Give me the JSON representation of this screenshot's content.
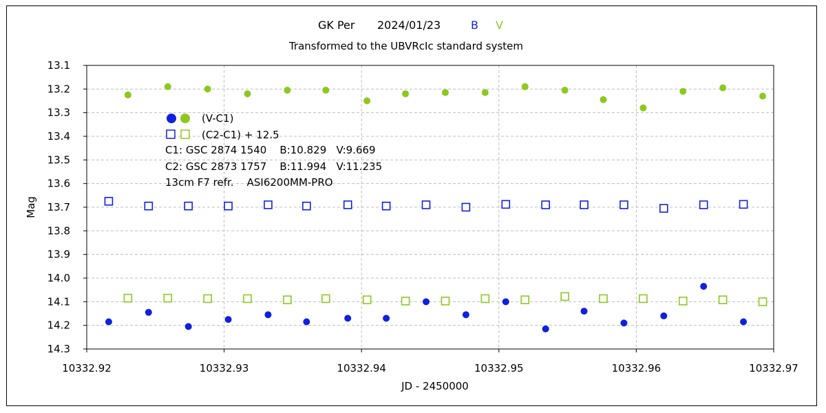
{
  "chart_data": {
    "type": "scatter",
    "title": {
      "object": "GK Per",
      "date": "2024/01/23",
      "band_b": "B",
      "band_v": "V"
    },
    "subtitle": "Transformed to the UBVRcIc standard system",
    "xlabel": "JD - 2450000",
    "ylabel": "Mag",
    "xlim": [
      10332.92,
      10332.97
    ],
    "ylim": [
      13.1,
      14.3
    ],
    "y_inverted": true,
    "x_ticks": [
      "10332.92",
      "10332.93",
      "10332.94",
      "10332.95",
      "10332.96",
      "10332.97"
    ],
    "x_tick_values": [
      10332.92,
      10332.93,
      10332.94,
      10332.95,
      10332.96,
      10332.97
    ],
    "y_ticks": [
      "13.1",
      "13.2",
      "13.3",
      "13.4",
      "13.5",
      "13.6",
      "13.7",
      "13.8",
      "13.9",
      "14.0",
      "14.1",
      "14.2",
      "14.3"
    ],
    "y_tick_values": [
      13.1,
      13.2,
      13.3,
      13.4,
      13.5,
      13.6,
      13.7,
      13.8,
      13.9,
      14.0,
      14.1,
      14.2,
      14.3
    ],
    "grid": true,
    "colors": {
      "B": "#1020e0",
      "V": "#8cc81e"
    },
    "series": [
      {
        "key": "B (V-C1)",
        "marker": "filled-circle",
        "color": "#1020e0",
        "x": [
          10332.9216,
          10332.9245,
          10332.9274,
          10332.9303,
          10332.9332,
          10332.936,
          10332.939,
          10332.9418,
          10332.9447,
          10332.9476,
          10332.9505,
          10332.9534,
          10332.9562,
          10332.9591,
          10332.962,
          10332.9649,
          10332.9678
        ],
        "y": [
          14.185,
          14.145,
          14.205,
          14.175,
          14.155,
          14.185,
          14.17,
          14.17,
          14.1,
          14.155,
          14.1,
          14.215,
          14.14,
          14.19,
          14.16,
          14.035,
          14.185
        ]
      },
      {
        "key": "V (V-C1)",
        "marker": "filled-circle",
        "color": "#8cc81e",
        "x": [
          10332.923,
          10332.9259,
          10332.9288,
          10332.9317,
          10332.9346,
          10332.9374,
          10332.9404,
          10332.9432,
          10332.9461,
          10332.949,
          10332.9519,
          10332.9548,
          10332.9576,
          10332.9605,
          10332.9634,
          10332.9663,
          10332.9692
        ],
        "y": [
          13.225,
          13.19,
          13.2,
          13.22,
          13.205,
          13.205,
          13.25,
          13.22,
          13.215,
          13.215,
          13.19,
          13.205,
          13.245,
          13.28,
          13.21,
          13.195,
          13.23
        ]
      },
      {
        "key": "B (C2-C1)+12.5",
        "marker": "open-square",
        "color": "#1020e0",
        "x": [
          10332.9216,
          10332.9245,
          10332.9274,
          10332.9303,
          10332.9332,
          10332.936,
          10332.939,
          10332.9418,
          10332.9447,
          10332.9476,
          10332.9505,
          10332.9534,
          10332.9562,
          10332.9591,
          10332.962,
          10332.9649,
          10332.9678
        ],
        "y": [
          13.675,
          13.695,
          13.695,
          13.695,
          13.69,
          13.695,
          13.69,
          13.695,
          13.69,
          13.7,
          13.688,
          13.69,
          13.69,
          13.69,
          13.705,
          13.69,
          13.688
        ]
      },
      {
        "key": "V (C2-C1)+12.5",
        "marker": "open-square",
        "color": "#8cc81e",
        "x": [
          10332.923,
          10332.9259,
          10332.9288,
          10332.9317,
          10332.9346,
          10332.9374,
          10332.9404,
          10332.9432,
          10332.9461,
          10332.949,
          10332.9519,
          10332.9548,
          10332.9576,
          10332.9605,
          10332.9634,
          10332.9663,
          10332.9692
        ],
        "y": [
          14.085,
          14.085,
          14.087,
          14.087,
          14.092,
          14.087,
          14.092,
          14.097,
          14.097,
          14.087,
          14.092,
          14.078,
          14.087,
          14.087,
          14.097,
          14.092,
          14.1
        ]
      }
    ],
    "legend": {
      "placement": "upper-left inside plot",
      "entries": [
        {
          "label": "(V-C1)",
          "marker": "filled-circle"
        },
        {
          "label": "(C2-C1) + 12.5",
          "marker": "open-square"
        }
      ]
    },
    "annotations": [
      "C1: GSC 2874 1540    B:10.829   V:9.669",
      "C2: GSC 2873 1757    B:11.994   V:11.235",
      "13cm F7 refr.    ASI6200MM-PRO"
    ]
  }
}
